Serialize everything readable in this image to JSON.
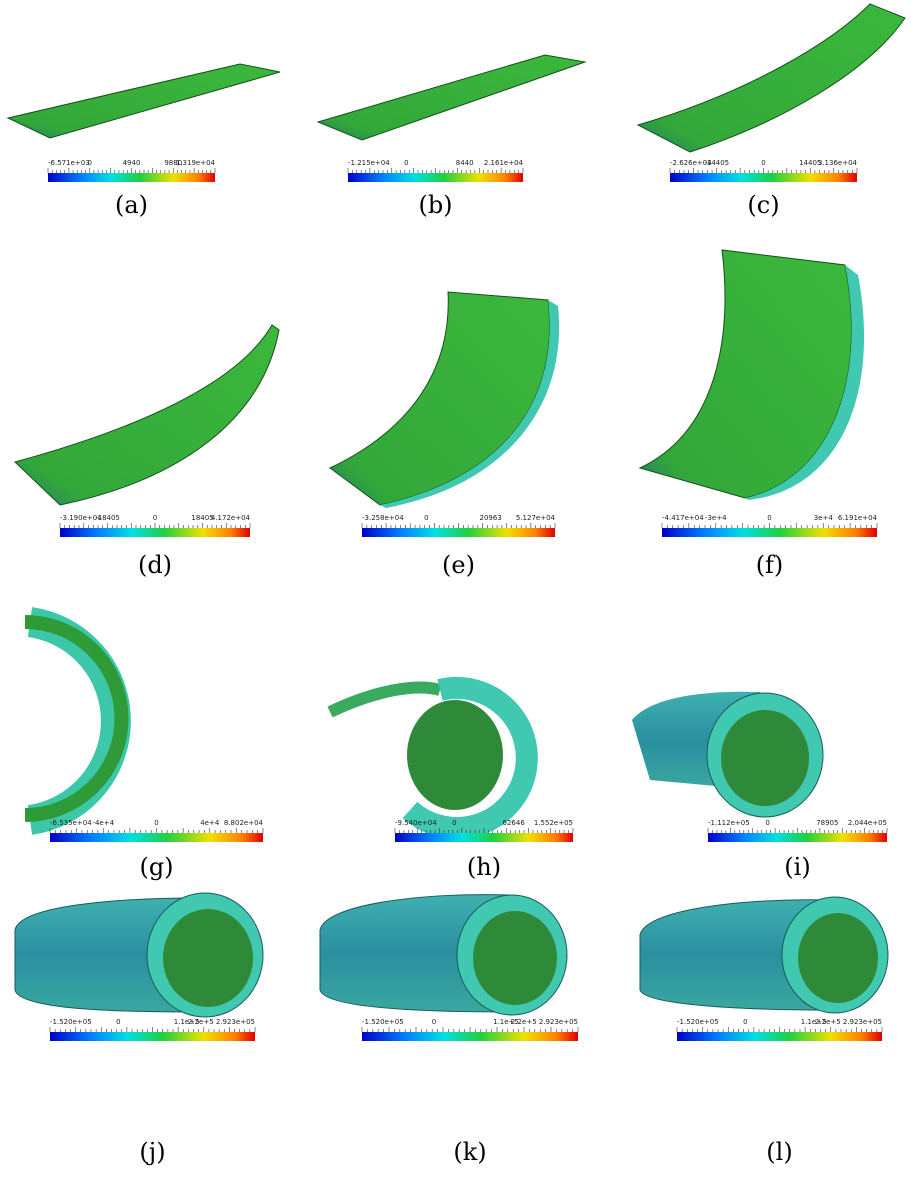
{
  "panels": [
    {
      "caption": "(a)",
      "ticks": [
        "-6.571e+03",
        "0",
        "4940",
        "9880",
        "1.319e+04"
      ]
    },
    {
      "caption": "(b)",
      "ticks": [
        "-1.215e+04",
        "0",
        "8440",
        "2.161e+04"
      ]
    },
    {
      "caption": "(c)",
      "ticks": [
        "-2.626e+04",
        "-14405",
        "0",
        "14405",
        "3.136e+04"
      ]
    },
    {
      "caption": "(d)",
      "ticks": [
        "-3.190e+04",
        "-18405",
        "0",
        "18405",
        "4.172e+04"
      ]
    },
    {
      "caption": "(e)",
      "ticks": [
        "-3.258e+04",
        "0",
        "20963",
        "5.127e+04"
      ]
    },
    {
      "caption": "(f)",
      "ticks": [
        "-4.417e+04",
        "-3e+4",
        "0",
        "3e+4",
        "6.191e+04"
      ]
    },
    {
      "caption": "(g)",
      "ticks": [
        "-6.535e+04",
        "-4e+4",
        "0",
        "4e+4",
        "8.802e+04"
      ]
    },
    {
      "caption": "(h)",
      "ticks": [
        "-9.540e+04",
        "0",
        "62646",
        "1.552e+05"
      ]
    },
    {
      "caption": "(i)",
      "ticks": [
        "-1.112e+05",
        "0",
        "78905",
        "2.044e+05"
      ]
    },
    {
      "caption": "(j)",
      "ticks": [
        "-1.520e+05",
        "0",
        "1.1e+5",
        "2.2e+5 2.923e+05"
      ]
    },
    {
      "caption": "(k)",
      "ticks": [
        "-1.520e+05",
        "0",
        "1.1e+5",
        "2.2e+5 2.923e+05"
      ]
    },
    {
      "caption": "(l)",
      "ticks": [
        "-1.520e+05",
        "0",
        "1.1e+5",
        "2.2e+5 2.923e+05"
      ]
    }
  ]
}
